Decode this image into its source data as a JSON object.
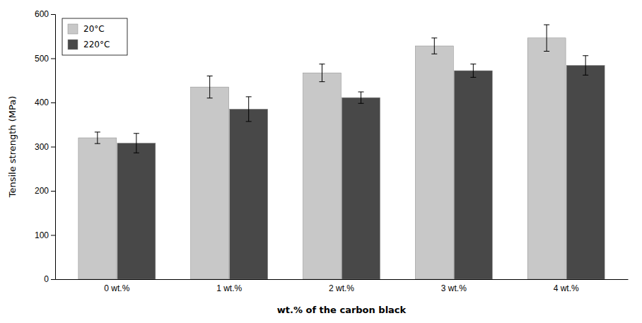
{
  "chart_data": {
    "type": "bar",
    "categories": [
      "0 wt.%",
      "1 wt.%",
      "2 wt.%",
      "3 wt.%",
      "4 wt.%"
    ],
    "series": [
      {
        "name": "20°C",
        "color": "#c8c8c8",
        "values": [
          320,
          435,
          467,
          528,
          546
        ],
        "errors": [
          13,
          25,
          20,
          18,
          30
        ]
      },
      {
        "name": "220°C",
        "color": "#484848",
        "values": [
          308,
          385,
          411,
          472,
          484
        ],
        "errors": [
          22,
          28,
          13,
          15,
          22
        ]
      }
    ],
    "xlabel": "wt.% of the carbon black",
    "ylabel": "Tensile strength (MPa)",
    "ylim": [
      0,
      600
    ],
    "yticks": [
      0,
      100,
      200,
      300,
      400,
      500,
      600
    ],
    "grid": false,
    "legend": "upper left"
  }
}
